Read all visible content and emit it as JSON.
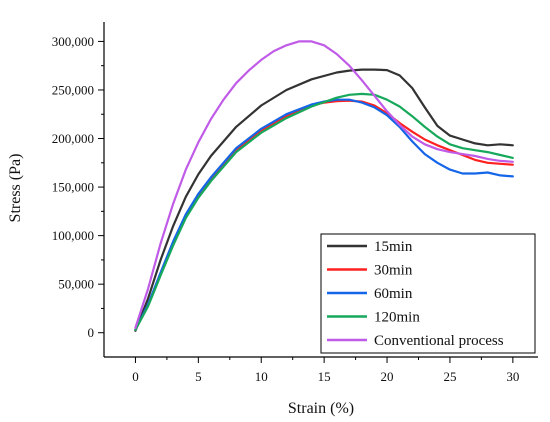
{
  "chart_data": {
    "type": "line",
    "xlabel": "Strain (%)",
    "ylabel": "Stress (Pa)",
    "xlim": [
      -2.5,
      32
    ],
    "ylim": [
      -25000,
      320000
    ],
    "xticks": [
      0,
      5,
      10,
      15,
      20,
      25,
      30
    ],
    "xtick_labels": [
      "0",
      "5",
      "10",
      "15",
      "20",
      "25",
      "30"
    ],
    "yticks": [
      0,
      50000,
      100000,
      150000,
      200000,
      250000,
      300000
    ],
    "ytick_labels": [
      "0",
      "50,000",
      "100,000",
      "150,000",
      "200,000",
      "250,000",
      "300,000"
    ],
    "grid": false,
    "legend_position": "bottom-right",
    "series": [
      {
        "name": "15min",
        "color": "#333333",
        "x": [
          0,
          1,
          2,
          3,
          4,
          5,
          6,
          8,
          10,
          12,
          14,
          16,
          17,
          18,
          19,
          20,
          21,
          22,
          23,
          24,
          25,
          26,
          27,
          28,
          29,
          30
        ],
        "y": [
          2000,
          35000,
          75000,
          110000,
          140000,
          163000,
          182000,
          212000,
          234000,
          250000,
          261000,
          268000,
          270000,
          271000,
          271000,
          270500,
          265000,
          252000,
          232000,
          213000,
          203000,
          199000,
          195000,
          193000,
          194000,
          193000
        ]
      },
      {
        "name": "30min",
        "color": "#ff2020",
        "x": [
          0,
          1,
          2,
          3,
          4,
          5,
          6,
          8,
          10,
          12,
          14,
          15,
          16,
          17,
          18,
          19,
          20,
          21,
          22,
          23,
          24,
          25,
          26,
          27,
          28,
          29,
          30
        ],
        "y": [
          3000,
          28000,
          60000,
          92000,
          120000,
          141000,
          158000,
          188000,
          208000,
          223000,
          234000,
          237000,
          238500,
          239000,
          238000,
          234000,
          226000,
          216000,
          207000,
          199000,
          193000,
          188000,
          183000,
          178000,
          175000,
          174000,
          173000
        ]
      },
      {
        "name": "60min",
        "color": "#1565e8",
        "x": [
          0,
          1,
          2,
          3,
          4,
          5,
          6,
          8,
          10,
          12,
          14,
          15,
          16,
          17,
          18,
          19,
          20,
          21,
          22,
          23,
          24,
          25,
          26,
          27,
          28,
          29,
          30
        ],
        "y": [
          3000,
          29000,
          62000,
          94000,
          122000,
          143000,
          160000,
          190000,
          210000,
          225000,
          235000,
          238000,
          240000,
          240000,
          237000,
          232000,
          224000,
          212000,
          197000,
          184000,
          175000,
          168000,
          164000,
          164000,
          165000,
          162000,
          161000
        ]
      },
      {
        "name": "120min",
        "color": "#17a85b",
        "x": [
          0,
          1,
          2,
          3,
          4,
          5,
          6,
          8,
          10,
          12,
          14,
          16,
          17,
          18,
          19,
          20,
          21,
          22,
          23,
          24,
          25,
          26,
          27,
          28,
          29,
          30
        ],
        "y": [
          3000,
          27000,
          59000,
          90000,
          118000,
          139000,
          156000,
          186000,
          206000,
          221000,
          233000,
          242000,
          245000,
          246000,
          245000,
          240000,
          233000,
          223000,
          212000,
          202000,
          194000,
          190000,
          188000,
          186000,
          183000,
          180000
        ]
      },
      {
        "name": "Conventional process",
        "color": "#c05be8",
        "x": [
          0,
          1,
          2,
          3,
          4,
          5,
          6,
          7,
          8,
          9,
          10,
          11,
          12,
          13,
          14,
          15,
          16,
          17,
          18,
          19,
          20,
          21,
          22,
          23,
          24,
          25,
          26,
          27,
          28,
          29,
          30
        ],
        "y": [
          5000,
          45000,
          92000,
          133000,
          168000,
          196000,
          220000,
          240000,
          257000,
          270000,
          281000,
          290000,
          296000,
          300000,
          300000,
          296000,
          287000,
          275000,
          260000,
          244000,
          228000,
          214000,
          202000,
          194000,
          189000,
          186000,
          184000,
          182000,
          179000,
          177000,
          176000
        ]
      }
    ]
  }
}
